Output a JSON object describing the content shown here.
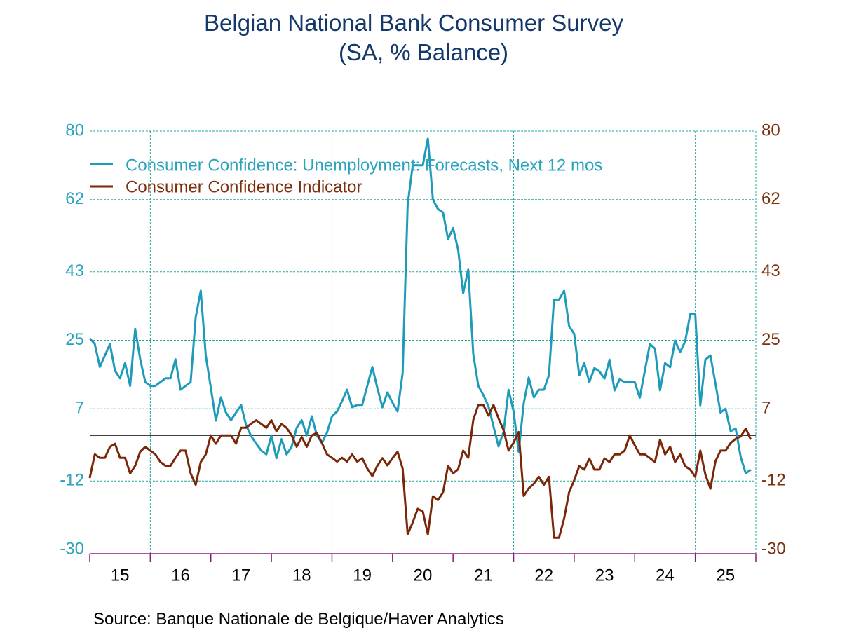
{
  "chart_data": {
    "type": "line",
    "title": "Belgian National Bank Consumer Survey",
    "subtitle": "(SA, % Balance)",
    "source": "Source:  Banque Nationale de Belgique/Haver Analytics",
    "x_start": "2015-01",
    "frequency": "monthly",
    "x_tick_labels": [
      "15",
      "16",
      "17",
      "18",
      "19",
      "20",
      "21",
      "22",
      "23",
      "24",
      "25"
    ],
    "y_left": {
      "ticks": [
        80,
        62,
        43,
        25,
        7,
        -12,
        -30
      ],
      "range": [
        -30,
        80
      ],
      "color": "#2aa3bd"
    },
    "y_right": {
      "ticks": [
        80,
        62,
        43,
        25,
        7,
        -12,
        -30
      ],
      "range": [
        -30,
        80
      ],
      "color": "#7b3010"
    },
    "grid": true,
    "legend_position": "top-left",
    "series": [
      {
        "name": "Consumer Confidence: Unemployment: Forecasts, Next 12 mos",
        "color": "#1e9bb8",
        "axis": "left",
        "values": [
          25.5,
          24,
          18,
          21,
          24,
          17,
          15,
          19,
          13,
          28,
          20,
          14,
          13,
          13,
          14,
          15,
          15,
          20,
          12,
          13,
          14,
          31,
          38,
          21,
          12.5,
          3.9,
          10,
          6,
          4,
          6,
          8,
          2.6,
          -0.2,
          -2.2,
          -4,
          -5,
          0,
          -6,
          -1,
          -5,
          -3,
          2,
          4,
          0,
          5,
          0,
          -2,
          0.7,
          5,
          6.3,
          9,
          12,
          7.4,
          8,
          8,
          13,
          18,
          12.4,
          7.4,
          11.3,
          8.6,
          6.3,
          16.3,
          60.6,
          71,
          71,
          71,
          78,
          62,
          59.5,
          58.6,
          51.6,
          54.5,
          48.8,
          37.4,
          43.6,
          21.3,
          13,
          10.6,
          7.7,
          2.4,
          -2.9,
          0.9,
          12,
          6.3,
          -4.3,
          8.4,
          15.2,
          10,
          12,
          12,
          15.8,
          35.7,
          35.7,
          38,
          28.7,
          26.7,
          15.8,
          19,
          14,
          17.7,
          16.8,
          14.9,
          19.9,
          11.8,
          14.7,
          14,
          14,
          14,
          9.9,
          17,
          24,
          22.8,
          11.8,
          19,
          17.9,
          24.9,
          21.9,
          24.7,
          31.9,
          31.9,
          7.9,
          19.9,
          21,
          13.6,
          6,
          7,
          1.1,
          1.8,
          -5.7,
          -10,
          -9
        ]
      },
      {
        "name": "Consumer Confidence Indicator",
        "color": "#7a2608",
        "axis": "right",
        "values": [
          -11.2,
          -5,
          -5.9,
          -5.9,
          -3,
          -2.2,
          -5.9,
          -5.9,
          -10,
          -8,
          -4.3,
          -3,
          -4,
          -5,
          -7,
          -8,
          -8,
          -5.9,
          -4,
          -4,
          -10,
          -13,
          -7,
          -5,
          0,
          -2.2,
          0,
          0,
          0,
          -2.2,
          2,
          2,
          3.1,
          4,
          3,
          2,
          4,
          1.1,
          3,
          2,
          0,
          -3,
          -0.4,
          -3,
          0,
          0.7,
          -2,
          -5,
          -5.9,
          -6.9,
          -5.9,
          -6.9,
          -5,
          -6.9,
          -6,
          -8.7,
          -10.7,
          -8,
          -6,
          -7.9,
          -6,
          -4.3,
          -8.7,
          -26,
          -22.9,
          -19.3,
          -20,
          -26,
          -16,
          -17,
          -15,
          -8,
          -10,
          -8.9,
          -4,
          -5.9,
          4.1,
          8,
          8,
          5.2,
          8,
          4.5,
          1.4,
          -4,
          -1.9,
          0.9,
          -15.9,
          -13.9,
          -12.7,
          -10.9,
          -13,
          -10.9,
          -26.9,
          -26.9,
          -21.9,
          -14.9,
          -11.8,
          -8.1,
          -9,
          -6.1,
          -9,
          -9,
          -6.1,
          -7,
          -5,
          -5,
          -4,
          0,
          -2.6,
          -5,
          -5,
          -6,
          -7,
          -1.1,
          -5,
          -3,
          -7,
          -5,
          -8.1,
          -9,
          -10.9,
          -4,
          -10.3,
          -14,
          -6.8,
          -4,
          -4,
          -2,
          -0.9,
          -0.3,
          1.8,
          -1.1
        ]
      }
    ]
  }
}
